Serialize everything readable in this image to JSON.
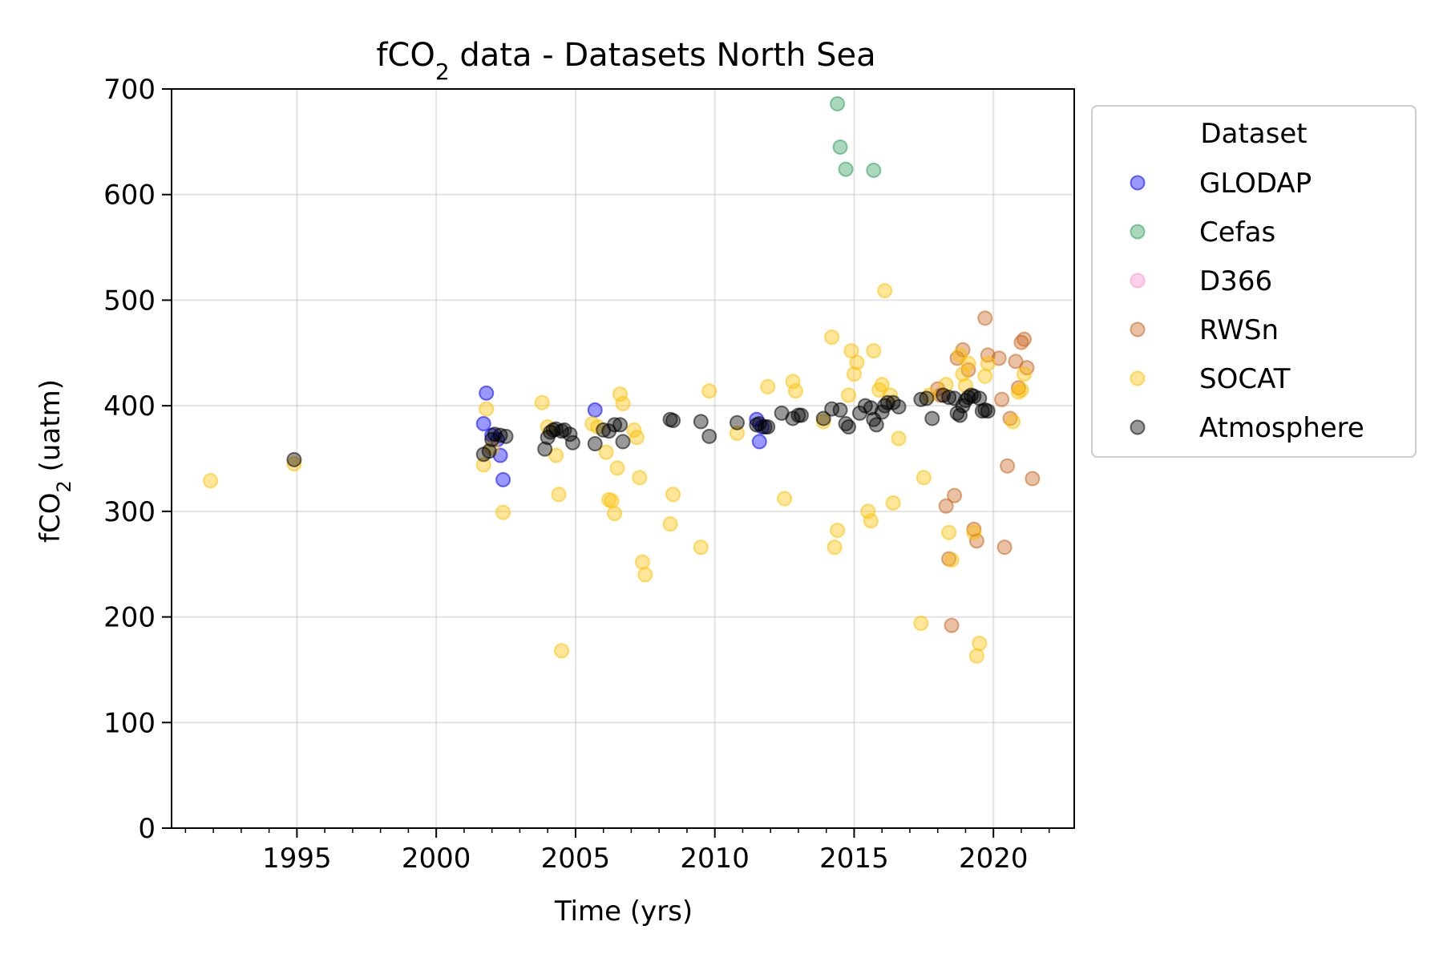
{
  "chart_data": {
    "type": "scatter",
    "title_main": "fCO",
    "title_sub": "2",
    "title_rest": " data - Datasets North Sea",
    "xlabel": "Time (yrs)",
    "ylabel_main": "fCO",
    "ylabel_sub": "2",
    "ylabel_rest": " (uatm)",
    "xlim": [
      1990.5,
      2022.9
    ],
    "ylim": [
      0,
      700
    ],
    "x_ticks": [
      1995,
      2000,
      2005,
      2010,
      2015,
      2020
    ],
    "x_minor_ticks": [
      1991,
      1992,
      1993,
      1994,
      1996,
      1997,
      1998,
      1999,
      2001,
      2002,
      2003,
      2004,
      2006,
      2007,
      2008,
      2009,
      2011,
      2012,
      2013,
      2014,
      2016,
      2017,
      2018,
      2019,
      2021,
      2022
    ],
    "y_ticks": [
      0,
      100,
      200,
      300,
      400,
      500,
      600,
      700
    ],
    "grid": true,
    "legend": {
      "title": "Dataset",
      "placement": "outside-top-right"
    },
    "series": [
      {
        "name": "GLODAP",
        "color": "#0000ff",
        "points": [
          [
            2001.7,
            383
          ],
          [
            2001.8,
            412
          ],
          [
            2002.0,
            372
          ],
          [
            2002.2,
            368
          ],
          [
            2002.3,
            353
          ],
          [
            2002.4,
            330
          ],
          [
            2005.7,
            396
          ],
          [
            2011.5,
            387
          ],
          [
            2011.6,
            366
          ],
          [
            2011.7,
            380
          ]
        ]
      },
      {
        "name": "Cefas",
        "color": "#2e9e5b",
        "points": [
          [
            2014.4,
            686
          ],
          [
            2014.5,
            645
          ],
          [
            2014.7,
            624
          ],
          [
            2015.7,
            623
          ]
        ]
      },
      {
        "name": "D366",
        "color": "#ff8fd0",
        "points": []
      },
      {
        "name": "RWSn",
        "color": "#c8641e",
        "points": [
          [
            2018.0,
            416
          ],
          [
            2018.1,
            410
          ],
          [
            2018.3,
            305
          ],
          [
            2018.4,
            255
          ],
          [
            2018.5,
            192
          ],
          [
            2018.6,
            315
          ],
          [
            2018.7,
            445
          ],
          [
            2018.9,
            453
          ],
          [
            2019.1,
            434
          ],
          [
            2019.3,
            283
          ],
          [
            2019.4,
            272
          ],
          [
            2019.7,
            483
          ],
          [
            2019.8,
            448
          ],
          [
            2020.2,
            445
          ],
          [
            2020.3,
            406
          ],
          [
            2020.4,
            266
          ],
          [
            2020.5,
            343
          ],
          [
            2020.6,
            388
          ],
          [
            2020.8,
            442
          ],
          [
            2020.9,
            417
          ],
          [
            2021.0,
            460
          ],
          [
            2021.1,
            463
          ],
          [
            2021.2,
            436
          ],
          [
            2021.4,
            331
          ]
        ]
      },
      {
        "name": "SOCAT",
        "color": "#ffc000",
        "points": [
          [
            1991.9,
            329
          ],
          [
            1994.9,
            345
          ],
          [
            2001.7,
            344
          ],
          [
            2001.8,
            397
          ],
          [
            2002.0,
            360
          ],
          [
            2002.4,
            299
          ],
          [
            2003.8,
            403
          ],
          [
            2004.0,
            380
          ],
          [
            2004.3,
            353
          ],
          [
            2004.4,
            316
          ],
          [
            2004.5,
            168
          ],
          [
            2005.6,
            383
          ],
          [
            2005.8,
            380
          ],
          [
            2006.1,
            356
          ],
          [
            2006.2,
            311
          ],
          [
            2006.3,
            310
          ],
          [
            2006.4,
            298
          ],
          [
            2006.5,
            341
          ],
          [
            2006.6,
            411
          ],
          [
            2006.7,
            402
          ],
          [
            2007.1,
            377
          ],
          [
            2007.2,
            370
          ],
          [
            2007.3,
            332
          ],
          [
            2007.4,
            252
          ],
          [
            2007.5,
            240
          ],
          [
            2008.4,
            288
          ],
          [
            2008.5,
            316
          ],
          [
            2009.5,
            266
          ],
          [
            2009.8,
            414
          ],
          [
            2010.8,
            374
          ],
          [
            2011.9,
            418
          ],
          [
            2012.5,
            312
          ],
          [
            2012.8,
            423
          ],
          [
            2012.9,
            414
          ],
          [
            2013.9,
            385
          ],
          [
            2014.2,
            465
          ],
          [
            2014.3,
            266
          ],
          [
            2014.4,
            282
          ],
          [
            2014.8,
            410
          ],
          [
            2014.9,
            452
          ],
          [
            2015.0,
            430
          ],
          [
            2015.1,
            441
          ],
          [
            2015.5,
            300
          ],
          [
            2015.6,
            291
          ],
          [
            2015.7,
            452
          ],
          [
            2015.9,
            415
          ],
          [
            2016.0,
            420
          ],
          [
            2016.1,
            509
          ],
          [
            2016.3,
            410
          ],
          [
            2016.4,
            308
          ],
          [
            2016.6,
            369
          ],
          [
            2017.4,
            194
          ],
          [
            2017.5,
            332
          ],
          [
            2017.7,
            410
          ],
          [
            2018.3,
            420
          ],
          [
            2018.4,
            280
          ],
          [
            2018.5,
            254
          ],
          [
            2018.8,
            448
          ],
          [
            2018.9,
            430
          ],
          [
            2019.0,
            419
          ],
          [
            2019.1,
            440
          ],
          [
            2019.3,
            280
          ],
          [
            2019.4,
            163
          ],
          [
            2019.5,
            175
          ],
          [
            2019.7,
            428
          ],
          [
            2019.8,
            440
          ],
          [
            2020.7,
            385
          ],
          [
            2020.9,
            413
          ],
          [
            2021.0,
            415
          ],
          [
            2021.1,
            430
          ]
        ]
      },
      {
        "name": "Atmosphere",
        "color": "#000000",
        "points": [
          [
            1994.9,
            349
          ],
          [
            2001.7,
            354
          ],
          [
            2001.9,
            357
          ],
          [
            2002.0,
            368
          ],
          [
            2002.1,
            373
          ],
          [
            2002.3,
            372
          ],
          [
            2002.5,
            371
          ],
          [
            2003.9,
            359
          ],
          [
            2004.0,
            370
          ],
          [
            2004.1,
            375
          ],
          [
            2004.2,
            377
          ],
          [
            2004.3,
            378
          ],
          [
            2004.5,
            376
          ],
          [
            2004.6,
            377
          ],
          [
            2004.8,
            373
          ],
          [
            2004.9,
            365
          ],
          [
            2005.7,
            364
          ],
          [
            2006.0,
            377
          ],
          [
            2006.2,
            376
          ],
          [
            2006.4,
            382
          ],
          [
            2006.6,
            382
          ],
          [
            2006.7,
            366
          ],
          [
            2008.4,
            387
          ],
          [
            2008.5,
            386
          ],
          [
            2009.5,
            385
          ],
          [
            2009.8,
            371
          ],
          [
            2010.8,
            384
          ],
          [
            2011.5,
            382
          ],
          [
            2011.6,
            383
          ],
          [
            2011.8,
            380
          ],
          [
            2011.9,
            380
          ],
          [
            2012.4,
            393
          ],
          [
            2012.8,
            388
          ],
          [
            2013.0,
            391
          ],
          [
            2013.1,
            391
          ],
          [
            2013.9,
            388
          ],
          [
            2014.2,
            397
          ],
          [
            2014.5,
            396
          ],
          [
            2014.7,
            383
          ],
          [
            2014.8,
            380
          ],
          [
            2015.2,
            393
          ],
          [
            2015.4,
            400
          ],
          [
            2015.6,
            398
          ],
          [
            2015.7,
            387
          ],
          [
            2015.8,
            382
          ],
          [
            2016.0,
            394
          ],
          [
            2016.1,
            400
          ],
          [
            2016.2,
            403
          ],
          [
            2016.4,
            403
          ],
          [
            2016.6,
            399
          ],
          [
            2017.4,
            406
          ],
          [
            2017.6,
            407
          ],
          [
            2017.8,
            388
          ],
          [
            2018.2,
            410
          ],
          [
            2018.4,
            408
          ],
          [
            2018.6,
            407
          ],
          [
            2018.7,
            393
          ],
          [
            2018.8,
            391
          ],
          [
            2018.9,
            400
          ],
          [
            2019.0,
            405
          ],
          [
            2019.1,
            408
          ],
          [
            2019.2,
            410
          ],
          [
            2019.3,
            409
          ],
          [
            2019.5,
            407
          ],
          [
            2019.6,
            395
          ],
          [
            2019.7,
            396
          ],
          [
            2019.8,
            395
          ]
        ]
      }
    ]
  }
}
